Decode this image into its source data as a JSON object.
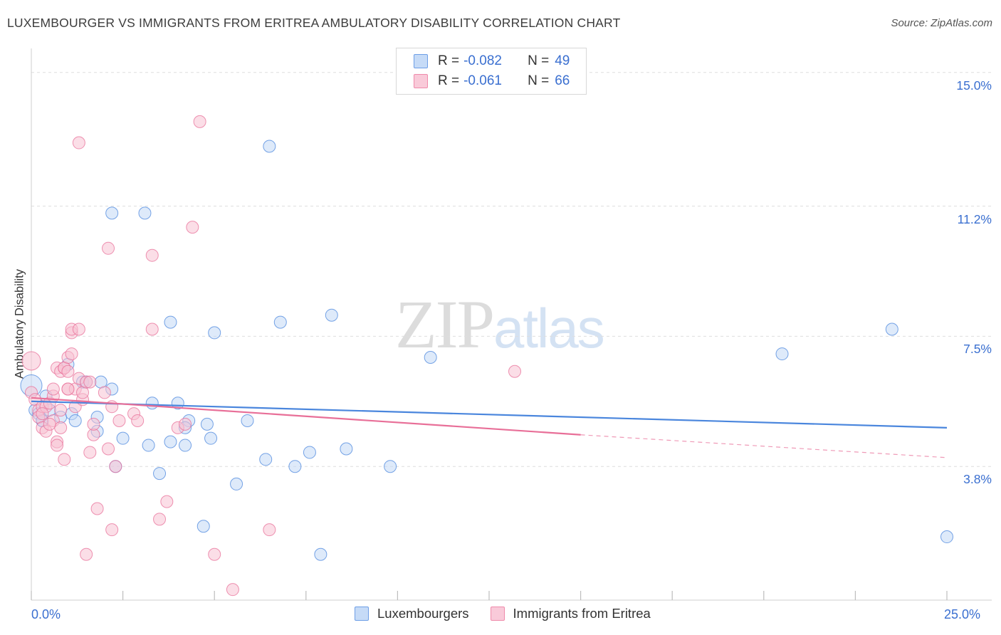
{
  "title": "LUXEMBOURGER VS IMMIGRANTS FROM ERITREA AMBULATORY DISABILITY CORRELATION CHART",
  "source": "Source: ZipAtlas.com",
  "watermark": {
    "part1": "ZIP",
    "part2": "atlas"
  },
  "legend_top": [
    {
      "r_label": "R =",
      "r_value": "-0.082",
      "n_label": "N =",
      "n_value": "49",
      "color": "#6d9ee6",
      "fill": "#c6dbf7"
    },
    {
      "r_label": "R =",
      "r_value": "-0.061",
      "n_label": "N =",
      "n_value": "66",
      "color": "#ef8aaa",
      "fill": "#f9cad9"
    }
  ],
  "chart_data": {
    "type": "scatter",
    "title": "LUXEMBOURGER VS IMMIGRANTS FROM ERITREA AMBULATORY DISABILITY CORRELATION CHART",
    "xlabel": "",
    "ylabel": "Ambulatory Disability",
    "x_tick_labels": [
      "0.0%",
      "25.0%"
    ],
    "y_tick_labels": [
      "3.8%",
      "7.5%",
      "11.2%",
      "15.0%"
    ],
    "y_ticks": [
      3.8,
      7.5,
      11.2,
      15.0
    ],
    "xlim": [
      0,
      25
    ],
    "ylim": [
      0,
      15.5
    ],
    "grid": true,
    "legend_position": "bottom-center",
    "series": [
      {
        "name": "Luxembourgers",
        "color": "#4a86dd",
        "fill": "#c3d8f5",
        "trend": {
          "x": [
            0,
            25
          ],
          "y": [
            5.65,
            4.9
          ]
        },
        "points": [
          [
            0.0,
            6.1
          ],
          [
            0.1,
            5.4
          ],
          [
            0.2,
            5.3
          ],
          [
            0.3,
            5.1
          ],
          [
            0.4,
            5.8
          ],
          [
            0.5,
            5.4
          ],
          [
            0.8,
            5.2
          ],
          [
            1.0,
            6.7
          ],
          [
            1.1,
            5.3
          ],
          [
            1.2,
            5.1
          ],
          [
            1.4,
            6.2
          ],
          [
            1.5,
            6.2
          ],
          [
            1.8,
            5.2
          ],
          [
            1.9,
            6.2
          ],
          [
            1.8,
            4.8
          ],
          [
            2.2,
            6.0
          ],
          [
            2.3,
            3.8
          ],
          [
            2.5,
            4.6
          ],
          [
            3.2,
            4.4
          ],
          [
            3.3,
            5.6
          ],
          [
            3.5,
            3.6
          ],
          [
            3.8,
            4.5
          ],
          [
            3.8,
            7.9
          ],
          [
            4.0,
            5.6
          ],
          [
            4.2,
            4.4
          ],
          [
            4.3,
            5.1
          ],
          [
            4.2,
            4.9
          ],
          [
            4.8,
            5.0
          ],
          [
            4.7,
            2.1
          ],
          [
            4.9,
            4.6
          ],
          [
            5.0,
            7.6
          ],
          [
            5.6,
            3.3
          ],
          [
            5.9,
            5.1
          ],
          [
            6.4,
            4.0
          ],
          [
            6.8,
            7.9
          ],
          [
            7.2,
            3.8
          ],
          [
            7.6,
            4.2
          ],
          [
            7.9,
            1.3
          ],
          [
            8.2,
            8.1
          ],
          [
            8.6,
            4.3
          ],
          [
            9.8,
            3.8
          ],
          [
            10.9,
            6.9
          ],
          [
            2.2,
            11.0
          ],
          [
            3.1,
            11.0
          ],
          [
            6.5,
            12.9
          ],
          [
            20.5,
            7.0
          ],
          [
            23.5,
            7.7
          ],
          [
            25.0,
            1.8
          ],
          [
            0.3,
            5.1
          ]
        ]
      },
      {
        "name": "Immigrants from Eritrea",
        "color": "#e86f98",
        "fill": "#f7c3d4",
        "trend": {
          "x": [
            0,
            15
          ],
          "y": [
            5.75,
            4.7
          ]
        },
        "trend_dashed": {
          "x": [
            15,
            25
          ],
          "y": [
            4.7,
            4.05
          ]
        },
        "points": [
          [
            0.0,
            6.8
          ],
          [
            0.0,
            5.9
          ],
          [
            0.1,
            5.7
          ],
          [
            0.2,
            5.4
          ],
          [
            0.2,
            5.2
          ],
          [
            0.3,
            4.9
          ],
          [
            0.3,
            5.5
          ],
          [
            0.4,
            5.5
          ],
          [
            0.4,
            4.8
          ],
          [
            0.5,
            5.6
          ],
          [
            0.6,
            5.8
          ],
          [
            0.6,
            6.0
          ],
          [
            0.6,
            5.1
          ],
          [
            0.7,
            6.6
          ],
          [
            0.7,
            4.5
          ],
          [
            0.7,
            4.4
          ],
          [
            0.8,
            6.5
          ],
          [
            0.8,
            4.9
          ],
          [
            0.9,
            4.0
          ],
          [
            0.9,
            6.6
          ],
          [
            0.9,
            6.6
          ],
          [
            1.0,
            6.0
          ],
          [
            1.0,
            6.9
          ],
          [
            1.0,
            6.5
          ],
          [
            1.1,
            7.6
          ],
          [
            1.1,
            7.7
          ],
          [
            1.1,
            7.0
          ],
          [
            1.2,
            6.0
          ],
          [
            1.2,
            5.5
          ],
          [
            1.3,
            7.7
          ],
          [
            1.3,
            6.3
          ],
          [
            1.4,
            5.7
          ],
          [
            1.4,
            5.9
          ],
          [
            1.5,
            6.2
          ],
          [
            1.5,
            1.3
          ],
          [
            1.6,
            4.2
          ],
          [
            1.7,
            4.7
          ],
          [
            1.7,
            5.0
          ],
          [
            1.8,
            2.6
          ],
          [
            2.1,
            10.0
          ],
          [
            2.1,
            4.3
          ],
          [
            2.2,
            2.0
          ],
          [
            2.2,
            5.5
          ],
          [
            2.3,
            3.8
          ],
          [
            2.4,
            5.1
          ],
          [
            2.8,
            5.3
          ],
          [
            2.9,
            5.1
          ],
          [
            3.3,
            9.8
          ],
          [
            3.3,
            7.7
          ],
          [
            3.5,
            2.3
          ],
          [
            3.7,
            2.8
          ],
          [
            4.0,
            4.9
          ],
          [
            4.2,
            5.0
          ],
          [
            4.4,
            10.6
          ],
          [
            4.6,
            13.6
          ],
          [
            5.0,
            1.3
          ],
          [
            5.5,
            0.3
          ],
          [
            6.5,
            2.0
          ],
          [
            1.3,
            13.0
          ],
          [
            13.2,
            6.5
          ],
          [
            0.5,
            5.0
          ],
          [
            0.3,
            5.3
          ],
          [
            1.0,
            6.0
          ],
          [
            0.8,
            5.4
          ],
          [
            2.0,
            5.9
          ],
          [
            1.6,
            6.2
          ]
        ]
      }
    ]
  },
  "legend_bottom": [
    {
      "label": "Luxembourgers",
      "color": "#6d9ee6",
      "fill": "#c6dbf7"
    },
    {
      "label": "Immigrants from Eritrea",
      "color": "#ef8aaa",
      "fill": "#f9cad9"
    }
  ]
}
